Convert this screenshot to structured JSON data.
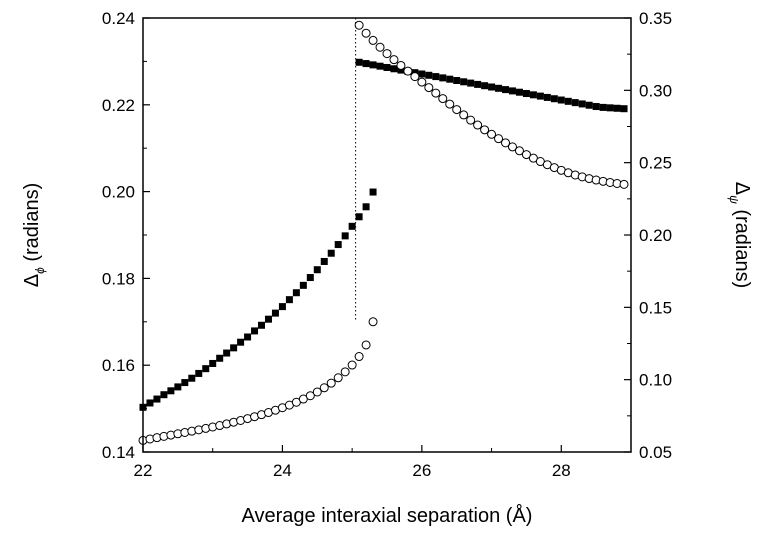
{
  "chart_data": {
    "type": "scatter",
    "title": "",
    "xlabel": "Average interaxial separation (Å)",
    "ylabel_left": {
      "symbol": "Δ",
      "subscript": "ϕ",
      "unit": "(radians)"
    },
    "ylabel_right": {
      "symbol": "Δ",
      "subscript": "ψ",
      "unit": "(radians)"
    },
    "xlim": [
      22,
      29
    ],
    "ylim_left": [
      0.14,
      0.24
    ],
    "ylim_right": [
      0.05,
      0.35
    ],
    "x_ticks": [
      "22",
      "24",
      "26",
      "28"
    ],
    "y_ticks_left": [
      "0.14",
      "0.16",
      "0.18",
      "0.20",
      "0.22",
      "0.24"
    ],
    "y_ticks_right": [
      "0.05",
      "0.10",
      "0.15",
      "0.20",
      "0.25",
      "0.30",
      "0.35"
    ],
    "transition_x": 25.05,
    "grid": false,
    "series": [
      {
        "axis": "left",
        "marker": "filled-square",
        "color": "#000000",
        "segments": [
          {
            "x_start": 22.0,
            "x_step": 0.1,
            "values": [
              0.1503,
              0.1513,
              0.1522,
              0.1532,
              0.1541,
              0.155,
              0.156,
              0.157,
              0.1581,
              0.1592,
              0.1604,
              0.1616,
              0.1628,
              0.164,
              0.1653,
              0.1665,
              0.1679,
              0.1692,
              0.1706,
              0.172,
              0.1735,
              0.1751,
              0.1767,
              0.1784,
              0.1802,
              0.182,
              0.1839,
              0.1858,
              0.1878,
              0.1898,
              0.192,
              0.1942,
              0.1965,
              0.1999
            ]
          },
          {
            "x_start": 25.1,
            "x_step": 0.1,
            "values": [
              0.2298,
              0.2295,
              0.2292,
              0.2289,
              0.2286,
              0.2283,
              0.228,
              0.2277,
              0.2274,
              0.2271,
              0.2268,
              0.2265,
              0.2262,
              0.2259,
              0.2256,
              0.2253,
              0.225,
              0.2247,
              0.2244,
              0.2241,
              0.2238,
              0.2235,
              0.2232,
              0.2229,
              0.2226,
              0.2223,
              0.222,
              0.2217,
              0.2214,
              0.2211,
              0.2208,
              0.2205,
              0.2202,
              0.2199,
              0.2196,
              0.2194,
              0.2193,
              0.2192,
              0.2191
            ]
          }
        ]
      },
      {
        "axis": "right",
        "marker": "open-circle",
        "color": "#000000",
        "segments": [
          {
            "x_start": 22.0,
            "x_step": 0.1,
            "values": [
              0.058,
              0.059,
              0.0599,
              0.0608,
              0.0617,
              0.0626,
              0.0635,
              0.0644,
              0.0653,
              0.0663,
              0.0673,
              0.0683,
              0.0694,
              0.0706,
              0.0718,
              0.0731,
              0.0744,
              0.0758,
              0.0773,
              0.0789,
              0.0806,
              0.0824,
              0.0844,
              0.0866,
              0.0889,
              0.0915,
              0.0944,
              0.0976,
              0.1013,
              0.1054,
              0.1101,
              0.116,
              0.124,
              0.14
            ]
          },
          {
            "x_start": 25.1,
            "x_step": 0.1,
            "values": [
              0.345,
              0.3395,
              0.3345,
              0.3298,
              0.3254,
              0.3212,
              0.3172,
              0.3133,
              0.3095,
              0.3057,
              0.3019,
              0.2981,
              0.2943,
              0.2905,
              0.2867,
              0.283,
              0.2794,
              0.276,
              0.2727,
              0.2696,
              0.2666,
              0.2637,
              0.2609,
              0.2582,
              0.2556,
              0.2531,
              0.2508,
              0.2486,
              0.2466,
              0.2447,
              0.243,
              0.2415,
              0.2402,
              0.239,
              0.238,
              0.2371,
              0.2363,
              0.2356,
              0.235
            ]
          }
        ]
      }
    ]
  }
}
